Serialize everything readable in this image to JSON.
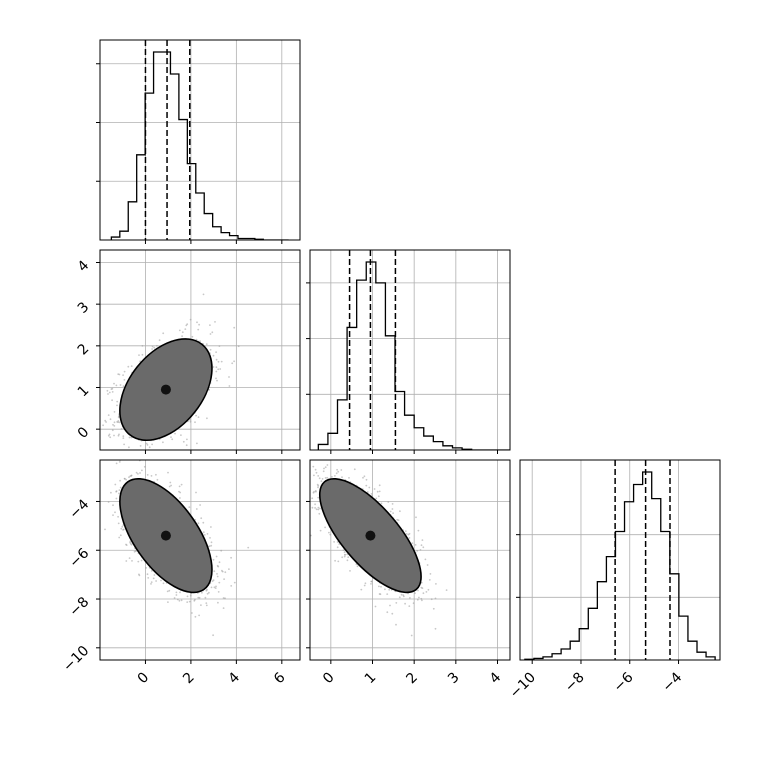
{
  "chart_data": {
    "type": "corner",
    "grid": true,
    "params": [
      {
        "range": [
          -2.0,
          6.8
        ],
        "ticks": [
          0,
          2,
          4,
          6
        ],
        "quantiles": [
          0.0,
          0.95,
          1.95
        ],
        "hist_bins": [
          -1.5,
          6.3
        ],
        "hist_counts": [
          2,
          6,
          26,
          58,
          100,
          128,
          128,
          113,
          82,
          52,
          32,
          18,
          9,
          5,
          3,
          1,
          1,
          0.5,
          0,
          0,
          0
        ]
      },
      {
        "range": [
          -0.5,
          4.3
        ],
        "ticks": [
          0,
          1,
          2,
          3,
          4
        ],
        "quantiles": [
          0.45,
          0.95,
          1.55
        ],
        "hist_bins": [
          -0.3,
          4.3
        ],
        "hist_counts": [
          4,
          12,
          36,
          88,
          122,
          135,
          120,
          82,
          42,
          25,
          16,
          10,
          6,
          3,
          1.5,
          0.5,
          0,
          0,
          0,
          0
        ]
      },
      {
        "range": [
          -10.5,
          -2.3
        ],
        "ticks": [
          -10,
          -8,
          -6,
          -4
        ],
        "quantiles": [
          -6.6,
          -5.35,
          -4.35
        ],
        "hist_bins": [
          -10.3,
          -2.5
        ],
        "hist_counts": [
          0.5,
          1,
          2,
          4,
          7,
          12,
          20,
          33,
          50,
          66,
          82,
          101,
          112,
          120,
          103,
          82,
          55,
          28,
          12,
          5,
          2
        ]
      }
    ],
    "pairs": [
      {
        "row": 1,
        "col": 0,
        "center": [
          0.9,
          0.95
        ],
        "sx": 1.0,
        "sy": 0.6,
        "rho": 0.42
      },
      {
        "row": 2,
        "col": 0,
        "center": [
          0.9,
          -5.4
        ],
        "sx": 1.0,
        "sy": 1.15,
        "rho": -0.6
      },
      {
        "row": 2,
        "col": 1,
        "center": [
          0.95,
          -5.4
        ],
        "sx": 0.6,
        "sy": 1.15,
        "rho": -0.72
      }
    ],
    "contour_levels": [
      0.12,
      0.45,
      0.9,
      1.45
    ]
  }
}
